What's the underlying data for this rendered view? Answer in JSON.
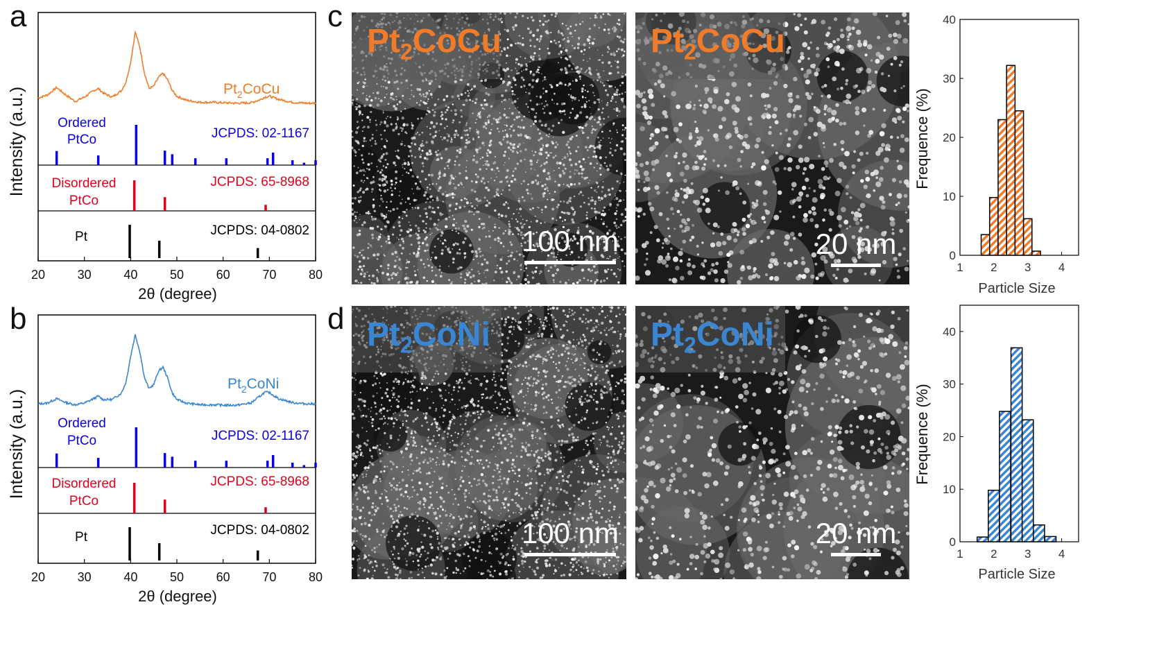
{
  "panel_labels": {
    "a": "a",
    "b": "b",
    "c": "c",
    "d": "d"
  },
  "colors": {
    "cu": "#f07c2a",
    "ni": "#3a86d2",
    "ordered": "#0a00e8",
    "disordered": "#e3001b",
    "pt": "#000000"
  },
  "xrd_panels": [
    {
      "sample_base": "Pt",
      "sample_sub": "2",
      "sample_rest": "CoCu",
      "ordered_label_1": "Ordered",
      "ordered_label_2": "PtCo",
      "ordered_ref": "JCPDS: 02-1167",
      "disordered_label_1": "Disordered",
      "disordered_label_2": "PtCo",
      "disordered_ref": "JCPDS: 65-8968",
      "pt_label": "Pt",
      "pt_ref": "JCPDS: 04-0802",
      "ylabel": "Intensity (a.u.)",
      "xlabel": "2θ (degree)",
      "xticks": [
        "20",
        "30",
        "40",
        "50",
        "60",
        "70",
        "80"
      ]
    },
    {
      "sample_base": "Pt",
      "sample_sub": "2",
      "sample_rest": "CoNi",
      "ordered_label_1": "Ordered",
      "ordered_label_2": "PtCo",
      "ordered_ref": "JCPDS: 02-1167",
      "disordered_label_1": "Disordered",
      "disordered_label_2": "PtCo",
      "disordered_ref": "JCPDS: 65-8968",
      "pt_label": "Pt",
      "pt_ref": "JCPDS: 04-0802",
      "ylabel": "Intensity (a.u.)",
      "xlabel": "2θ (degree)",
      "xticks": [
        "20",
        "30",
        "40",
        "50",
        "60",
        "70",
        "80"
      ]
    }
  ],
  "tem": {
    "row1": {
      "label_base": "Pt",
      "label_sub": "2",
      "label_rest": "CoCu",
      "scale_left": "100 nm",
      "scale_right": "20 nm"
    },
    "row2": {
      "label_base": "Pt",
      "label_sub": "2",
      "label_rest": "CoNi",
      "scale_left": "100 nm",
      "scale_right": "20 nm"
    }
  },
  "histograms": [
    {
      "ylabel": "Frequence (%)",
      "xlabel": "Particle Size",
      "xticks": [
        "1",
        "2",
        "3",
        "4"
      ],
      "yticks": [
        "0",
        "10",
        "20",
        "30",
        "40"
      ]
    },
    {
      "ylabel": "Frequence (%)",
      "xlabel": "Particle Size",
      "xticks": [
        "1",
        "2",
        "3",
        "4"
      ],
      "yticks": [
        "0",
        "10",
        "20",
        "30",
        "40"
      ]
    }
  ],
  "chart_data": [
    {
      "type": "line",
      "panel": "a",
      "xlabel": "2θ (degree)",
      "ylabel": "Intensity (a.u.)",
      "xlim": [
        20,
        80
      ],
      "series": [
        {
          "name": "Pt2CoCu",
          "x": [
            20,
            22,
            24,
            26,
            28,
            30,
            32,
            33,
            34,
            36,
            38,
            39,
            40,
            41,
            42,
            43,
            44,
            45,
            46,
            47,
            48,
            49,
            50,
            52,
            55,
            58,
            60,
            63,
            66,
            68,
            69,
            70,
            72,
            75,
            78,
            80
          ],
          "y": [
            0.38,
            0.45,
            0.62,
            0.45,
            0.3,
            0.4,
            0.55,
            0.6,
            0.5,
            0.4,
            0.55,
            0.75,
            1.2,
            1.9,
            1.55,
            0.95,
            0.6,
            0.65,
            0.85,
            0.95,
            0.8,
            0.55,
            0.42,
            0.33,
            0.28,
            0.28,
            0.27,
            0.26,
            0.27,
            0.34,
            0.4,
            0.42,
            0.35,
            0.28,
            0.26,
            0.26
          ]
        }
      ],
      "references": [
        {
          "name": "Ordered PtCo",
          "ref": "JCPDS: 02-1167",
          "peaks": [
            [
              24.0,
              0.35
            ],
            [
              33.0,
              0.24
            ],
            [
              41.2,
              1.0
            ],
            [
              47.4,
              0.36
            ],
            [
              49.0,
              0.27
            ],
            [
              54.0,
              0.17
            ],
            [
              60.7,
              0.17
            ],
            [
              69.6,
              0.17
            ],
            [
              70.8,
              0.31
            ],
            [
              75.0,
              0.12
            ],
            [
              77.5,
              0.06
            ],
            [
              80,
              0.12
            ]
          ]
        },
        {
          "name": "Disordered PtCo",
          "ref": "JCPDS: 65-8968",
          "peaks": [
            [
              40.8,
              1.0
            ],
            [
              47.4,
              0.45
            ],
            [
              69.2,
              0.2
            ]
          ]
        },
        {
          "name": "Pt",
          "ref": "JCPDS: 04-0802",
          "peaks": [
            [
              39.8,
              1.0
            ],
            [
              46.2,
              0.52
            ],
            [
              67.5,
              0.3
            ]
          ]
        }
      ]
    },
    {
      "type": "line",
      "panel": "b",
      "xlabel": "2θ (degree)",
      "ylabel": "Intensity (a.u.)",
      "xlim": [
        20,
        80
      ],
      "series": [
        {
          "name": "Pt2CoNi",
          "x": [
            20,
            22,
            24,
            26,
            28,
            30,
            32,
            33,
            34,
            36,
            38,
            39,
            40,
            41,
            42,
            43,
            44,
            45,
            46,
            47,
            48,
            49,
            50,
            52,
            55,
            58,
            60,
            63,
            66,
            68,
            69,
            70,
            72,
            75,
            78,
            80
          ],
          "y": [
            0.3,
            0.32,
            0.42,
            0.33,
            0.28,
            0.32,
            0.42,
            0.48,
            0.4,
            0.4,
            0.55,
            0.8,
            1.4,
            1.9,
            1.5,
            0.9,
            0.65,
            0.75,
            1.05,
            1.15,
            0.9,
            0.55,
            0.4,
            0.32,
            0.28,
            0.28,
            0.27,
            0.27,
            0.32,
            0.48,
            0.57,
            0.56,
            0.42,
            0.33,
            0.3,
            0.3
          ]
        }
      ],
      "references": [
        {
          "name": "Ordered PtCo",
          "ref": "JCPDS: 02-1167",
          "peaks": [
            [
              24.0,
              0.35
            ],
            [
              33.0,
              0.24
            ],
            [
              41.2,
              1.0
            ],
            [
              47.4,
              0.36
            ],
            [
              49.0,
              0.27
            ],
            [
              54.0,
              0.17
            ],
            [
              60.7,
              0.17
            ],
            [
              69.6,
              0.17
            ],
            [
              70.8,
              0.31
            ],
            [
              75.0,
              0.12
            ],
            [
              77.5,
              0.06
            ],
            [
              80,
              0.12
            ]
          ]
        },
        {
          "name": "Disordered PtCo",
          "ref": "JCPDS: 65-8968",
          "peaks": [
            [
              40.8,
              1.0
            ],
            [
              47.4,
              0.45
            ],
            [
              69.2,
              0.2
            ]
          ]
        },
        {
          "name": "Pt",
          "ref": "JCPDS: 04-0802",
          "peaks": [
            [
              39.8,
              1.0
            ],
            [
              46.2,
              0.52
            ],
            [
              67.5,
              0.3
            ]
          ]
        }
      ]
    },
    {
      "type": "bar",
      "panel": "c-histogram",
      "xlabel": "Particle Size",
      "ylabel": "Frequence (%)",
      "xlim": [
        1,
        4.5
      ],
      "ylim": [
        0,
        40
      ],
      "bin_width": 0.25,
      "bin_centers": [
        1.75,
        2.0,
        2.25,
        2.5,
        2.75,
        3.0,
        3.25,
        3.5
      ],
      "values": [
        3.5,
        9.8,
        23.0,
        32.2,
        24.5,
        6.2,
        0.7,
        0
      ]
    },
    {
      "type": "bar",
      "panel": "d-histogram",
      "xlabel": "Particle Size",
      "ylabel": "Frequence (%)",
      "xlim": [
        1,
        4.5
      ],
      "ylim": [
        0,
        45
      ],
      "bin_width": 0.33,
      "bin_centers": [
        1.67,
        2.0,
        2.33,
        2.67,
        3.0,
        3.33,
        3.67,
        4.0
      ],
      "values": [
        0.9,
        9.8,
        24.8,
        36.9,
        23.2,
        3.2,
        1.0,
        0
      ]
    }
  ]
}
